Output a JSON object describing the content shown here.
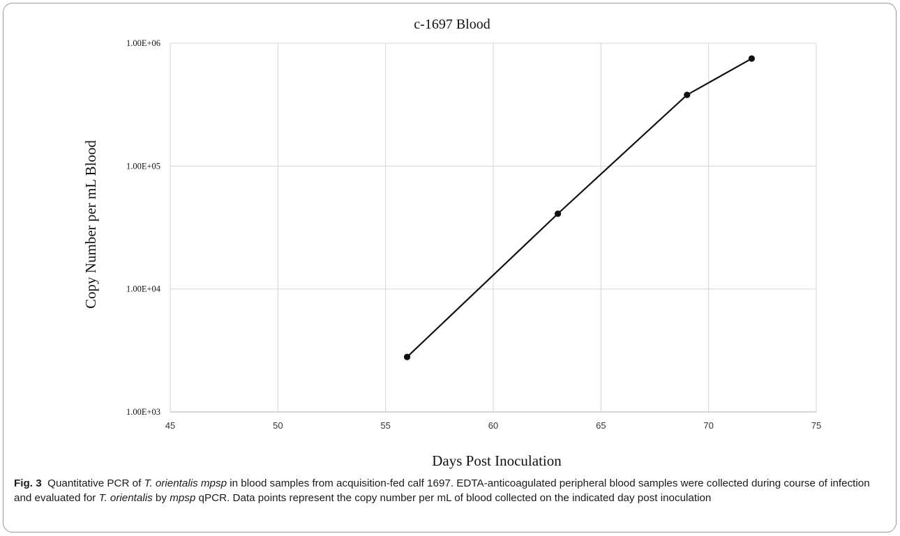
{
  "caption": {
    "figure_label": "Fig. 3",
    "parts": [
      {
        "text": "Quantitative PCR of ",
        "italic": false
      },
      {
        "text": "T. orientalis mpsp",
        "italic": true
      },
      {
        "text": " in blood samples from acquisition-fed calf 1697. EDTA-anticoagulated peripheral blood samples were collected during course of infection and evaluated for ",
        "italic": false
      },
      {
        "text": "T. orientalis",
        "italic": true
      },
      {
        "text": " by ",
        "italic": false
      },
      {
        "text": "mpsp",
        "italic": true
      },
      {
        "text": " qPCR. Data points represent the copy number per mL of blood collected on the indicated day post inoculation",
        "italic": false
      }
    ]
  },
  "chart_data": {
    "type": "line",
    "title": "c-1697 Blood",
    "xlabel": "Days Post Inoculation",
    "ylabel": "Copy Number per mL Blood",
    "xlim": [
      45,
      75
    ],
    "xticks": [
      45,
      50,
      55,
      60,
      65,
      70,
      75
    ],
    "xtick_labels": [
      "45",
      "50",
      "55",
      "60",
      "65",
      "70",
      "75"
    ],
    "ylim": [
      1000,
      1000000
    ],
    "yscale": "log",
    "yticks": [
      1000,
      10000,
      100000,
      1000000
    ],
    "ytick_labels": [
      "1.00E+03",
      "1.00E+04",
      "1.00E+05",
      "1.00E+06"
    ],
    "grid": true,
    "line_color": "#111111",
    "grid_color": "#d4d4d4",
    "series": [
      {
        "x": [
          56,
          63,
          69,
          72
        ],
        "y": [
          2800,
          41000,
          380000,
          750000
        ]
      }
    ]
  }
}
